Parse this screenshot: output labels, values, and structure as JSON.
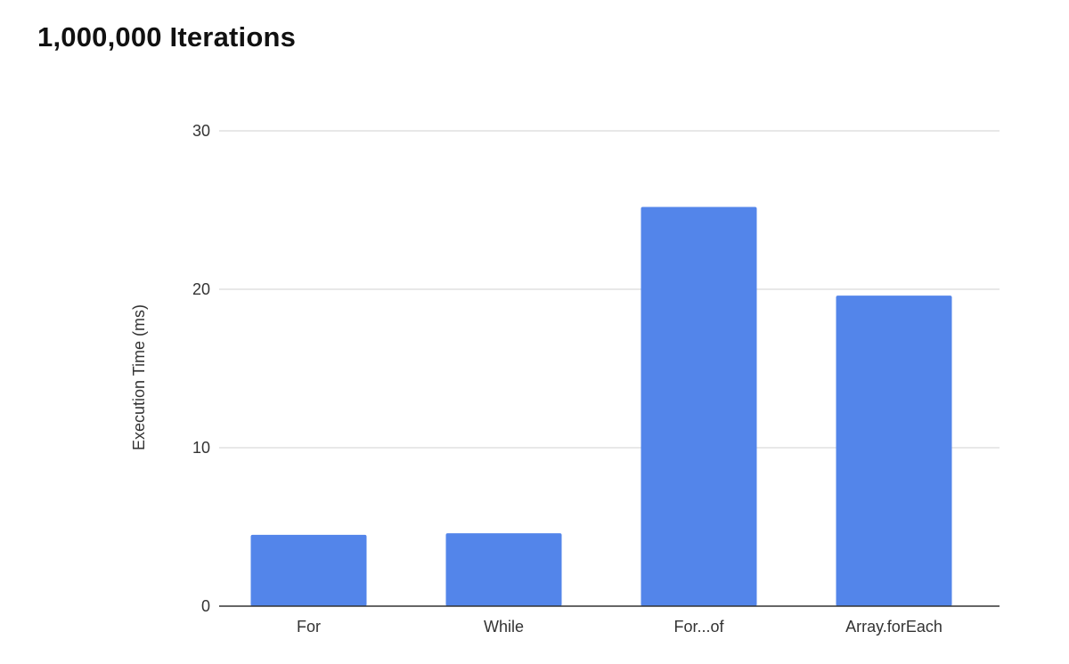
{
  "chart_data": {
    "type": "bar",
    "title": "1,000,000 Iterations",
    "xlabel": "",
    "ylabel": "Execution Time (ms)",
    "categories": [
      "For",
      "While",
      "For...of",
      "Array.forEach"
    ],
    "values": [
      4.5,
      4.6,
      25.2,
      19.6
    ],
    "ylim": [
      0,
      30
    ],
    "yticks": [
      0,
      10,
      20,
      30
    ],
    "grid": true,
    "legend": "none",
    "bar_color": "#5385EA",
    "gridline_color": "#D9D9D9",
    "axis_color": "#333333"
  }
}
